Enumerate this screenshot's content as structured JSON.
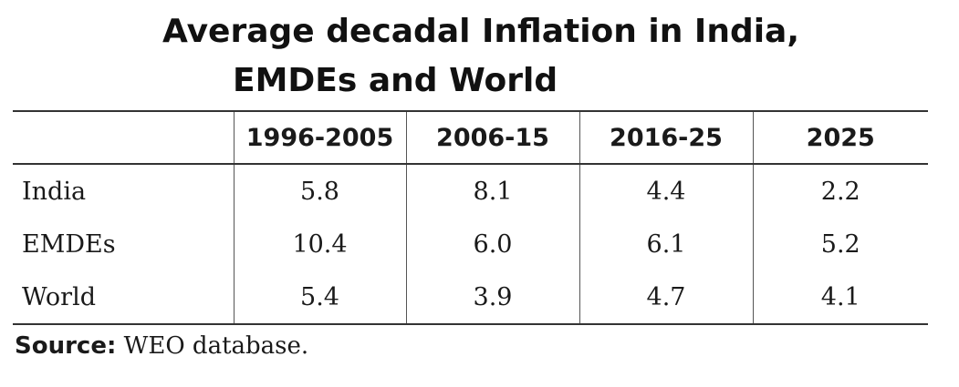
{
  "title": {
    "line1": "Average decadal Inflation in India,",
    "line2": "EMDEs and World"
  },
  "table": {
    "headers": [
      "",
      "1996-2005",
      "2006-15",
      "2016-25",
      "2025"
    ],
    "rows": [
      [
        "India",
        "5.8",
        "8.1",
        "4.4",
        "2.2"
      ],
      [
        "EMDEs",
        "10.4",
        "6.0",
        "6.1",
        "5.2"
      ],
      [
        "World",
        "5.4",
        "3.9",
        "4.7",
        "4.1"
      ]
    ]
  },
  "source": {
    "label": "Source:",
    "text": " WEO database."
  }
}
